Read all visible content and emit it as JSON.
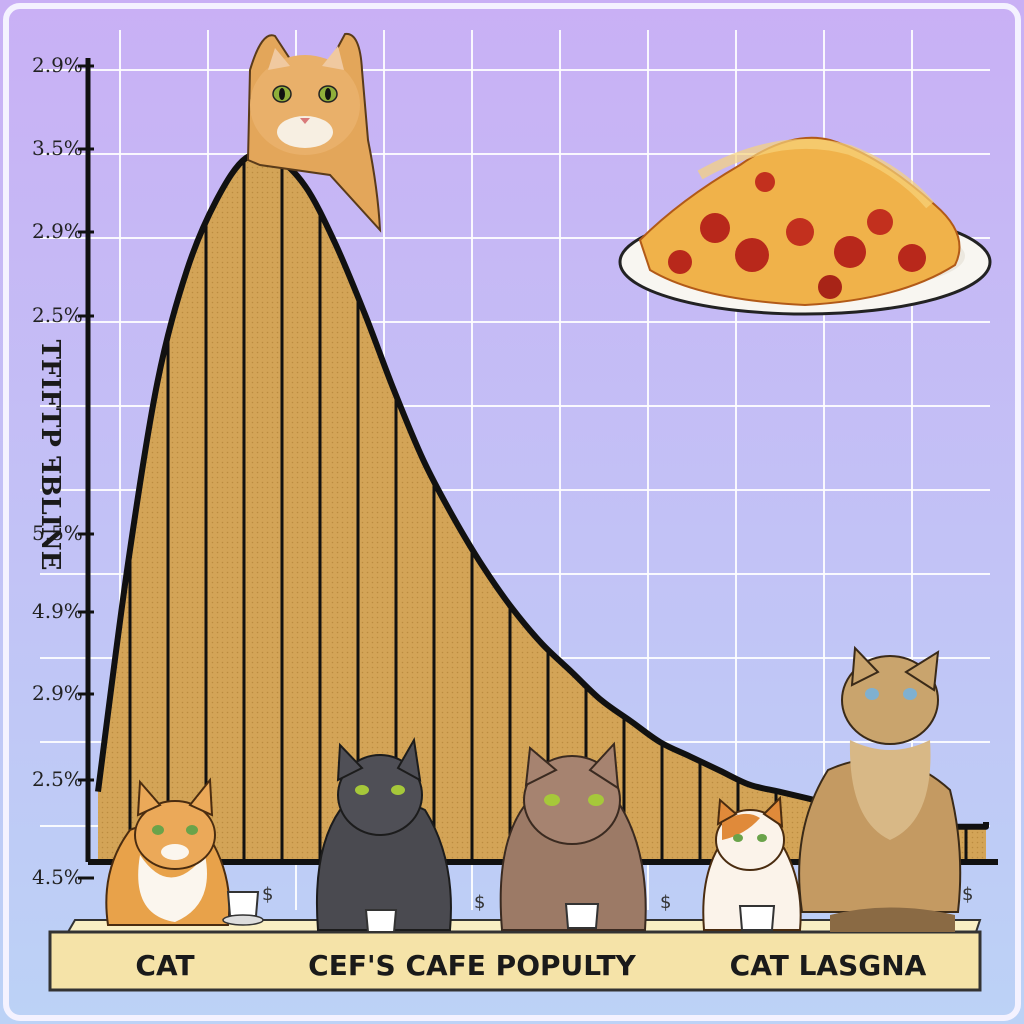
{
  "chart_data": {
    "type": "area",
    "title": "",
    "ylabel": "TFIFTP ꟻBLINE",
    "y_tick_labels": [
      "2.9%",
      "3.5%",
      "2.9%",
      "2.5%",
      "",
      "5.5%",
      "4.9%",
      "2.9%",
      "2.5%",
      "4.5%"
    ],
    "grid": true,
    "legend": "none",
    "x": [
      0,
      1,
      2,
      3,
      4,
      5,
      6,
      7,
      8,
      9,
      10,
      11,
      12,
      13,
      14,
      15,
      16,
      17,
      18,
      19,
      20,
      21,
      22,
      23,
      24,
      25,
      26,
      27,
      28,
      29,
      30
    ],
    "series": [
      {
        "values": [
          0.1,
          0.42,
          0.68,
          0.84,
          0.94,
          1.0,
          1.0,
          0.96,
          0.88,
          0.78,
          0.67,
          0.57,
          0.49,
          0.42,
          0.36,
          0.31,
          0.27,
          0.23,
          0.2,
          0.17,
          0.15,
          0.13,
          0.11,
          0.1,
          0.09,
          0.08,
          0.07,
          0.06,
          0.05,
          0.05,
          0.05
        ]
      }
    ],
    "shelf_labels": [
      "CAT",
      "CEF'S CAFE POPULTY",
      "CAT LASGNA"
    ],
    "small_marks": [
      "$",
      "$",
      "$",
      "$"
    ],
    "colors": {
      "background_top": "#c9b0f5",
      "background_bottom": "#bcd2f6",
      "grid": "#ffffff",
      "fill": "#d3a457",
      "outline": "#111111",
      "shelf": "#f5e3a8"
    }
  },
  "pictures": {
    "cat_top": "orange-tabby-cat",
    "lasagna": "pepperoni-lasagna-plate",
    "shelf_cats": [
      "orange-white-cat",
      "dark-gray-cat",
      "brown-cat",
      "calico-kitten",
      "tabby-cat"
    ],
    "cups": "coffee-cup-icon"
  }
}
